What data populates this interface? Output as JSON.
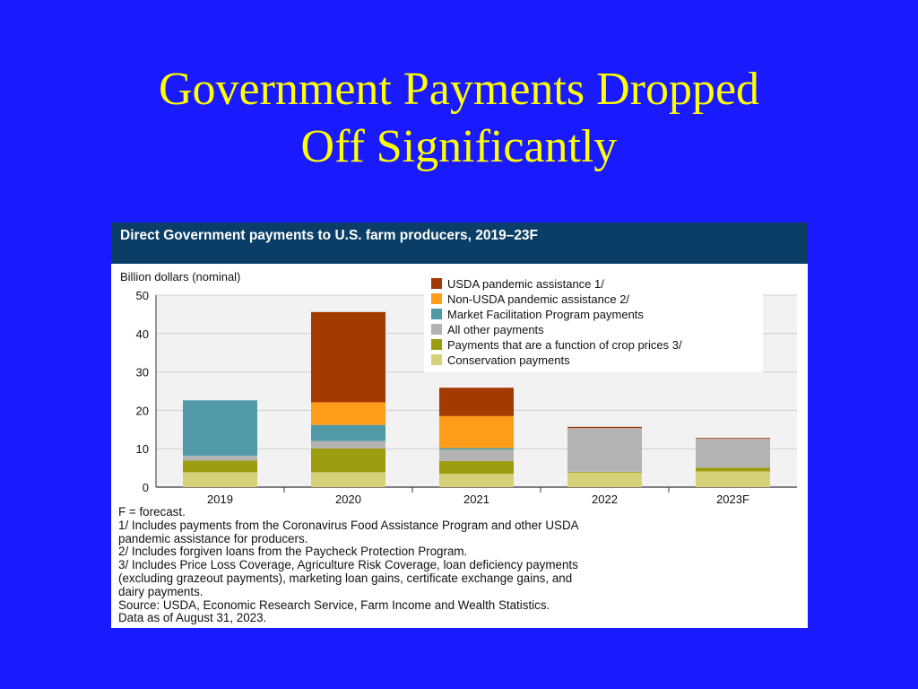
{
  "slide": {
    "title_line1": "Government Payments Dropped",
    "title_line2": "Off Significantly"
  },
  "colors": {
    "background": "#1a1aff",
    "title": "#ffff00",
    "header_bar": "#0b3e66"
  },
  "chart_data": {
    "type": "bar",
    "stacked": true,
    "title": "Direct Government payments to U.S. farm producers, 2019–23F",
    "ylabel": "Billion dollars (nominal)",
    "xlabel": "",
    "ylim": [
      0,
      50
    ],
    "yticks": [
      0,
      10,
      20,
      30,
      40,
      50
    ],
    "grid": true,
    "legend_position": "top-right",
    "categories": [
      "2019",
      "2020",
      "2021",
      "2022",
      "2023F"
    ],
    "series": [
      {
        "name": "Conservation payments",
        "color": "#d4d179",
        "values": [
          3.9,
          3.9,
          3.5,
          3.8,
          4.1
        ]
      },
      {
        "name": "Payments that are a function of crop prices 3/",
        "color": "#9c9c0f",
        "values": [
          3.0,
          6.2,
          3.3,
          0.2,
          1.0
        ]
      },
      {
        "name": "All other payments",
        "color": "#b3b3b3",
        "values": [
          1.3,
          1.9,
          3.0,
          11.4,
          7.5
        ]
      },
      {
        "name": "Market Facilitation Program payments",
        "color": "#4f9aa6",
        "values": [
          14.4,
          4.2,
          0.4,
          0.0,
          0.0
        ]
      },
      {
        "name": "Non-USDA pandemic assistance 2/",
        "color": "#ff9c1a",
        "values": [
          0.0,
          5.9,
          8.3,
          0.0,
          0.0
        ]
      },
      {
        "name": "USDA pandemic assistance 1/",
        "color": "#a33b00",
        "values": [
          0.0,
          23.5,
          7.4,
          0.3,
          0.2
        ]
      }
    ],
    "legend_order": [
      "USDA pandemic assistance 1/",
      "Non-USDA pandemic assistance 2/",
      "Market Facilitation Program payments",
      "All other payments",
      "Payments that are a function of crop prices 3/",
      "Conservation payments"
    ],
    "notes": [
      "F = forecast.",
      "1/ Includes payments from the Coronavirus Food Assistance Program and other USDA",
      "pandemic assistance for producers.",
      "2/ Includes forgiven loans from the Paycheck Protection Program.",
      "3/ Includes Price Loss Coverage, Agriculture Risk Coverage, loan deficiency payments",
      "(excluding grazeout payments), marketing loan gains, certificate exchange gains, and",
      "dairy payments.",
      "Source: USDA, Economic Research Service, Farm Income and Wealth Statistics.",
      "Data as of August 31, 2023."
    ]
  }
}
